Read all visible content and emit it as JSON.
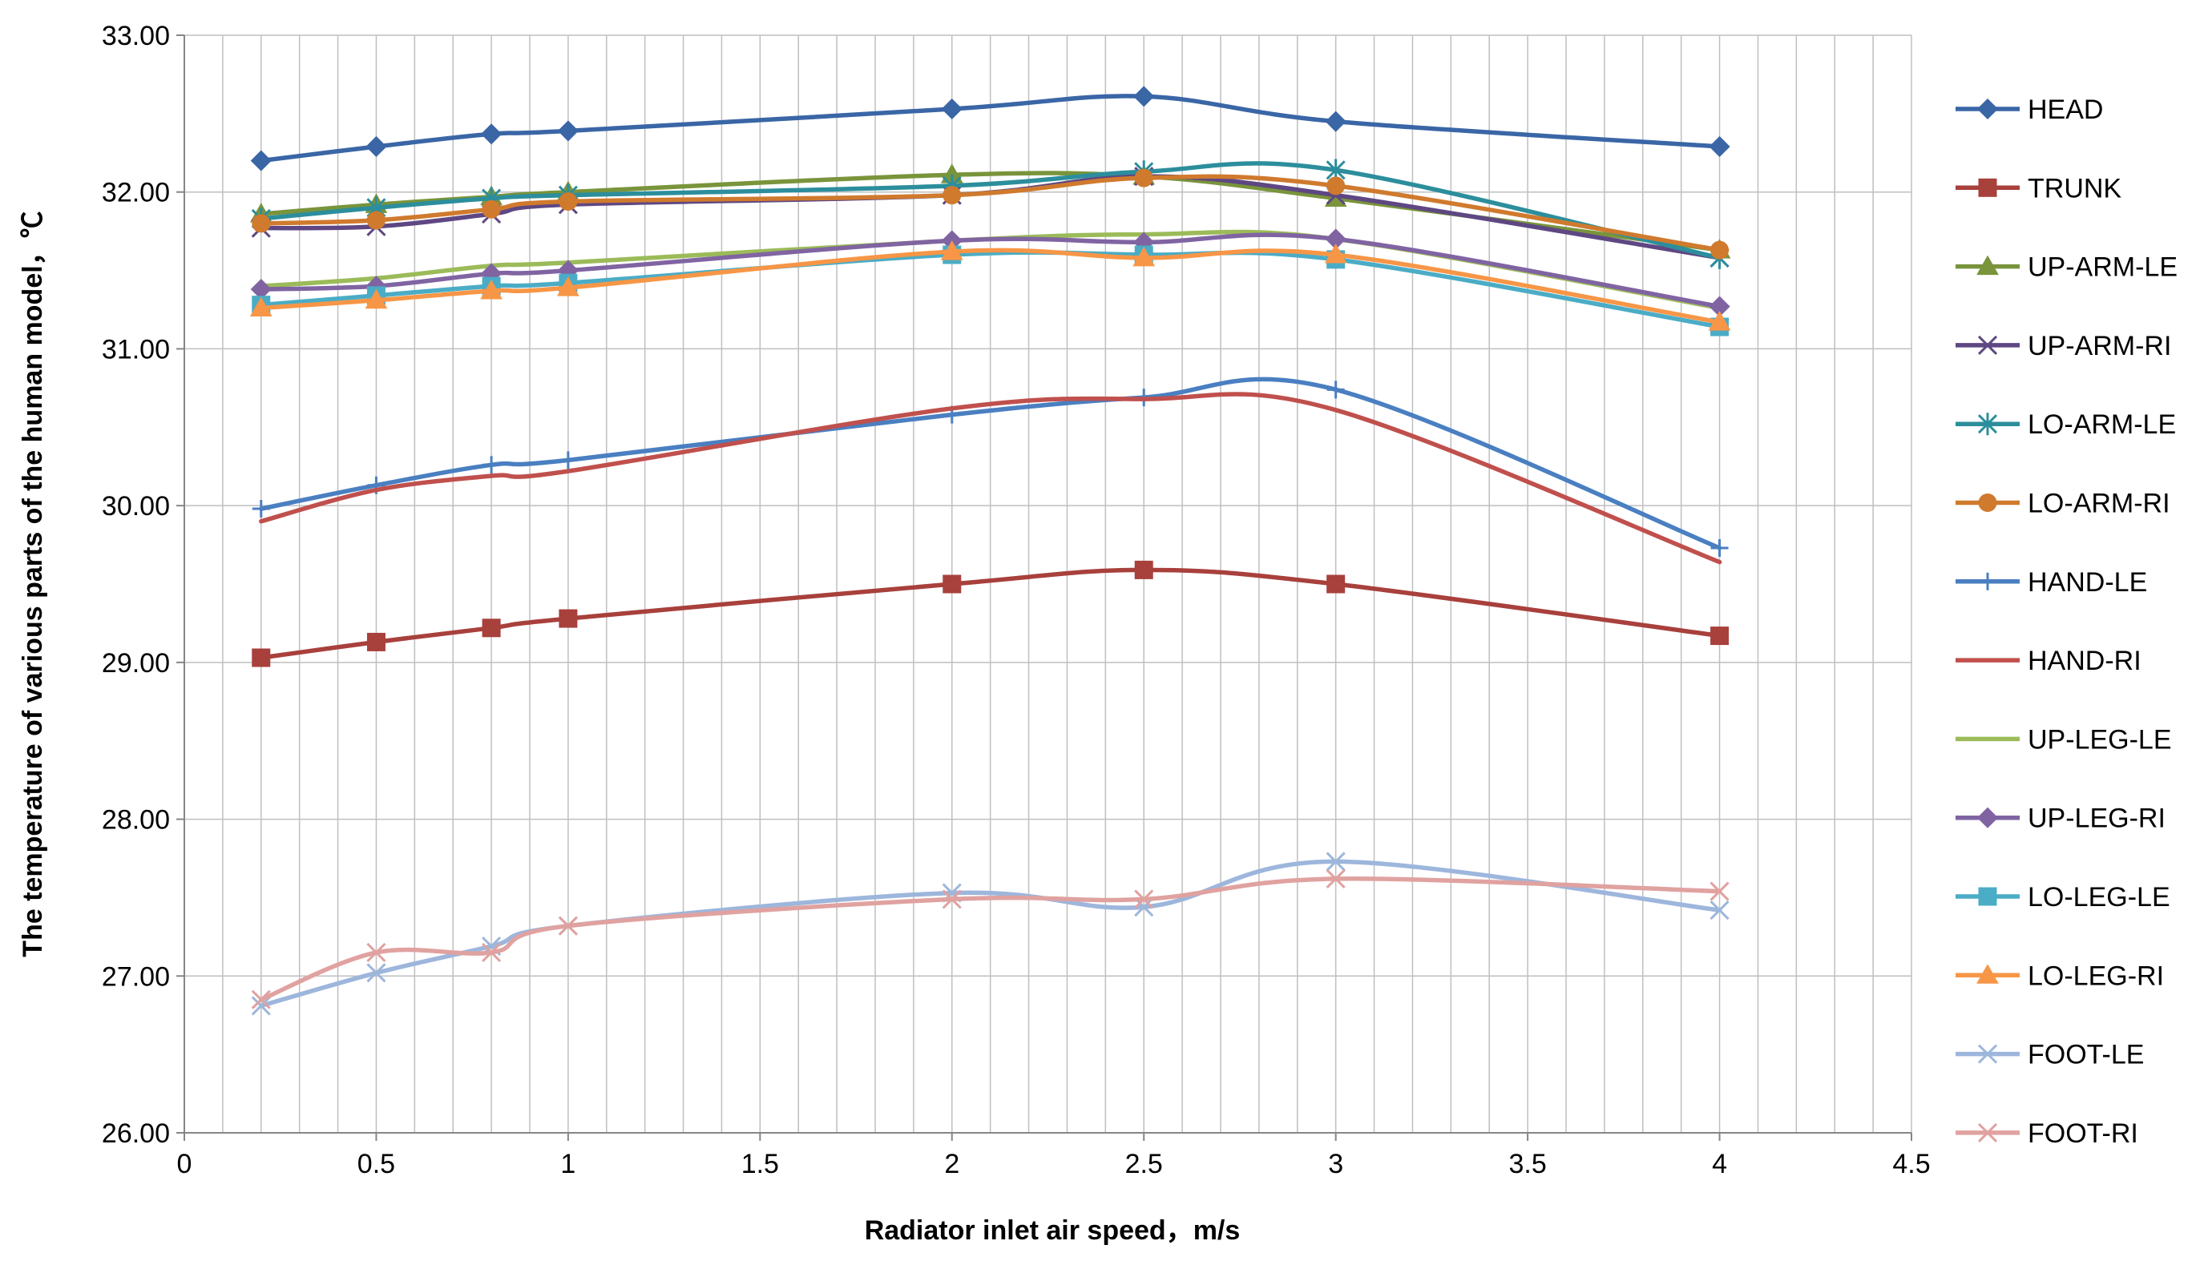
{
  "chart_data": {
    "type": "line",
    "title": "",
    "xlabel": "Radiator inlet air speed，m/s",
    "ylabel": "The temperature of various parts of the human model，℃",
    "xlim": [
      0,
      4.5
    ],
    "ylim": [
      26,
      33
    ],
    "xticks": [
      0,
      0.5,
      1,
      1.5,
      2,
      2.5,
      3,
      3.5,
      4,
      4.5
    ],
    "xtick_labels": [
      "0",
      "0.5",
      "1",
      "1.5",
      "2",
      "2.5",
      "3",
      "3.5",
      "4",
      "4.5"
    ],
    "yticks": [
      26,
      27,
      28,
      29,
      30,
      31,
      32,
      33
    ],
    "ytick_labels": [
      "26.00",
      "27.00",
      "28.00",
      "29.00",
      "30.00",
      "31.00",
      "32.00",
      "33.00"
    ],
    "minor_x_step": 0.1,
    "grid": true,
    "legend_position": "right",
    "smooth": true,
    "x": [
      0.2,
      0.5,
      0.8,
      1,
      2,
      2.5,
      3,
      4
    ],
    "series": [
      {
        "name": "HEAD",
        "color": "#3a66a6",
        "marker": "diamond",
        "values": [
          32.2,
          32.29,
          32.37,
          32.39,
          32.53,
          32.61,
          32.45,
          32.29
        ]
      },
      {
        "name": "TRUNK",
        "color": "#a8403c",
        "marker": "square",
        "values": [
          29.03,
          29.13,
          29.22,
          29.28,
          29.5,
          29.59,
          29.5,
          29.17
        ]
      },
      {
        "name": "UP-ARM-LE",
        "color": "#79943b",
        "marker": "triangle",
        "values": [
          31.86,
          31.92,
          31.97,
          32.0,
          32.11,
          32.1,
          31.96,
          31.63
        ]
      },
      {
        "name": "UP-ARM-RI",
        "color": "#5e4782",
        "marker": "x",
        "values": [
          31.77,
          31.78,
          31.86,
          31.92,
          31.98,
          32.1,
          31.98,
          31.58
        ]
      },
      {
        "name": "LO-ARM-LE",
        "color": "#2c8e9c",
        "marker": "star",
        "values": [
          31.83,
          31.9,
          31.96,
          31.98,
          32.04,
          32.13,
          32.14,
          31.58
        ]
      },
      {
        "name": "LO-ARM-RI",
        "color": "#d07a2e",
        "marker": "circle",
        "values": [
          31.8,
          31.82,
          31.89,
          31.94,
          31.98,
          32.09,
          32.04,
          31.63
        ]
      },
      {
        "name": "HAND-LE",
        "color": "#4a7fc1",
        "marker": "plus",
        "values": [
          29.98,
          30.13,
          30.26,
          30.29,
          30.58,
          30.69,
          30.74,
          29.73
        ]
      },
      {
        "name": "HAND-RI",
        "color": "#c0504d",
        "marker": "none",
        "values": [
          29.9,
          30.1,
          30.19,
          30.22,
          30.62,
          30.68,
          30.61,
          29.64
        ]
      },
      {
        "name": "UP-LEG-LE",
        "color": "#9bbb59",
        "marker": "none",
        "values": [
          31.4,
          31.45,
          31.53,
          31.55,
          31.69,
          31.73,
          31.7,
          31.26
        ]
      },
      {
        "name": "UP-LEG-RI",
        "color": "#8064a2",
        "marker": "diamond",
        "values": [
          31.38,
          31.4,
          31.48,
          31.5,
          31.69,
          31.68,
          31.7,
          31.27
        ]
      },
      {
        "name": "LO-LEG-LE",
        "color": "#4bacc6",
        "marker": "square",
        "values": [
          31.28,
          31.34,
          31.4,
          31.42,
          31.6,
          31.6,
          31.57,
          31.14
        ]
      },
      {
        "name": "LO-LEG-RI",
        "color": "#f79646",
        "marker": "triangle",
        "values": [
          31.26,
          31.31,
          31.37,
          31.39,
          31.62,
          31.58,
          31.6,
          31.17
        ]
      },
      {
        "name": "FOOT-LE",
        "color": "#9db6dc",
        "marker": "x",
        "values": [
          26.81,
          27.02,
          27.19,
          27.32,
          27.53,
          27.44,
          27.73,
          27.42
        ]
      },
      {
        "name": "FOOT-RI",
        "color": "#e0a2a0",
        "marker": "x",
        "values": [
          26.85,
          27.15,
          27.15,
          27.32,
          27.49,
          27.49,
          27.62,
          27.54
        ]
      }
    ]
  }
}
